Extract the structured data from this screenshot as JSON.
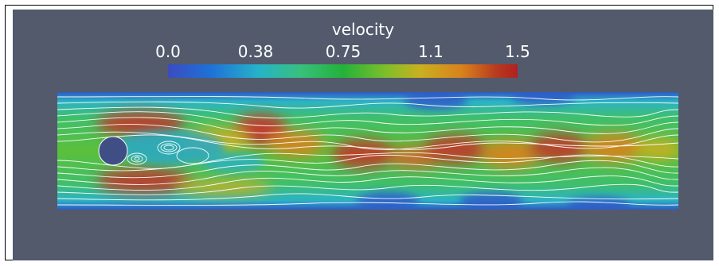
{
  "legend": {
    "title": "velocity",
    "ticks": [
      "0.0",
      "0.38",
      "0.75",
      "1.1",
      "1.5"
    ],
    "min": 0.0,
    "max": 1.5,
    "colormap": [
      "#3b4cc0",
      "#26b3c9",
      "#23b23a",
      "#c9b020",
      "#b21f1f"
    ]
  },
  "colors": {
    "background": "#525a6c",
    "streamline": "#ffffff",
    "obstacle": "#3f4f86"
  }
}
